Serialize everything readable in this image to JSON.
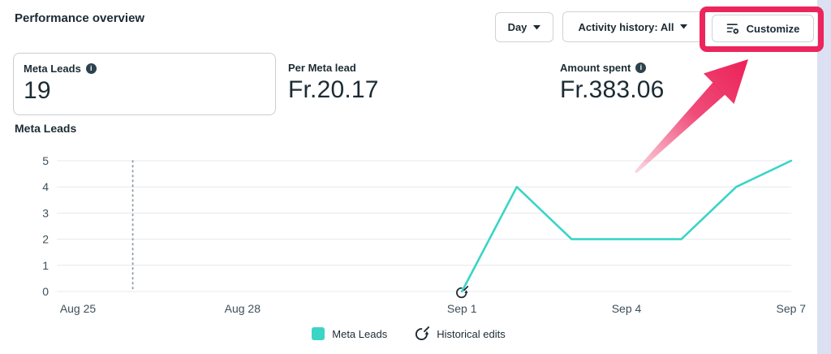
{
  "header": {
    "title": "Performance overview"
  },
  "toolbar": {
    "day_label": "Day",
    "activity_label": "Activity history: All",
    "customize_label": "Customize"
  },
  "metrics": [
    {
      "label": "Meta Leads",
      "value": "19",
      "info": true
    },
    {
      "label": "Per Meta lead",
      "value": "Fr.20.17",
      "info": false
    },
    {
      "label": "Amount spent",
      "value": "Fr.383.06",
      "info": true
    }
  ],
  "chart": {
    "section_title": "Meta Leads"
  },
  "chart_data": {
    "type": "line",
    "title": "Meta Leads",
    "days": [
      "Aug 25",
      "Aug 26",
      "Aug 27",
      "Aug 28",
      "Aug 29",
      "Aug 30",
      "Aug 31",
      "Sep 1",
      "Sep 2",
      "Sep 3",
      "Sep 4",
      "Sep 5",
      "Sep 6",
      "Sep 7"
    ],
    "x_tick_labels": [
      "Aug 25",
      "Aug 28",
      "Sep 1",
      "Sep 4",
      "Sep 7"
    ],
    "series": [
      {
        "name": "Meta Leads",
        "color": "#3bd4c7",
        "values": [
          null,
          null,
          null,
          null,
          null,
          null,
          null,
          0,
          4,
          2,
          2,
          2,
          4,
          5
        ]
      }
    ],
    "ylim": [
      0,
      5
    ],
    "yticks": [
      0,
      1,
      2,
      3,
      4,
      5
    ],
    "grid": true,
    "legend_position": "bottom",
    "dotted_line_day": "Aug 26",
    "historical_edits_marker": {
      "day": "Sep 1",
      "value": 0
    },
    "legend": [
      {
        "label": "Meta Leads",
        "type": "swatch"
      },
      {
        "label": "Historical edits",
        "type": "icon"
      }
    ]
  },
  "annotation": {
    "highlight_color": "#ec255c"
  },
  "icons": {
    "info_glyph": "i"
  },
  "colors": {
    "accent": "#3bd4c7",
    "page_background_strip": "#dbe0f2",
    "text": "#1c2b33"
  }
}
